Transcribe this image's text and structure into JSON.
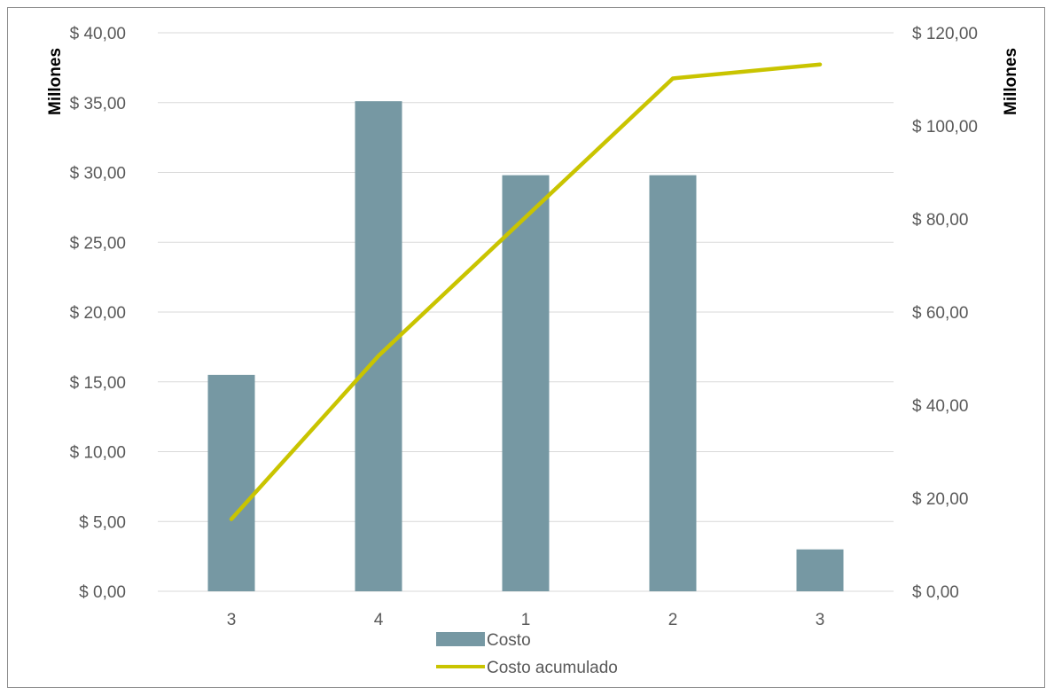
{
  "chart_data": {
    "type": "bar",
    "categories": [
      "3",
      "4",
      "1",
      "2",
      "3"
    ],
    "series": [
      {
        "name": "Costo",
        "type": "bar",
        "axis": "left",
        "values": [
          15.5,
          35.1,
          29.8,
          29.8,
          3.0
        ]
      },
      {
        "name": "Costo acumulado",
        "type": "line",
        "axis": "right",
        "values": [
          15.5,
          50.6,
          80.4,
          110.2,
          113.2
        ]
      }
    ],
    "y_left": {
      "label": "Millones",
      "range": [
        0,
        40
      ],
      "ticks": [
        "$ 0,00",
        "$ 5,00",
        "$ 10,00",
        "$ 15,00",
        "$ 20,00",
        "$ 25,00",
        "$ 30,00",
        "$ 35,00",
        "$ 40,00"
      ],
      "tick_values": [
        0,
        5,
        10,
        15,
        20,
        25,
        30,
        35,
        40
      ]
    },
    "y_right": {
      "label": "Millones",
      "range": [
        0,
        120
      ],
      "ticks": [
        "$ 0,00",
        "$ 20,00",
        "$ 40,00",
        "$ 60,00",
        "$ 80,00",
        "$ 100,00",
        "$ 120,00"
      ],
      "tick_values": [
        0,
        20,
        40,
        60,
        80,
        100,
        120
      ]
    },
    "grid": true,
    "legend_position": "bottom",
    "colors": {
      "bar": "#7698a3",
      "line": "#c9c400",
      "grid": "#d9d9d9"
    }
  }
}
